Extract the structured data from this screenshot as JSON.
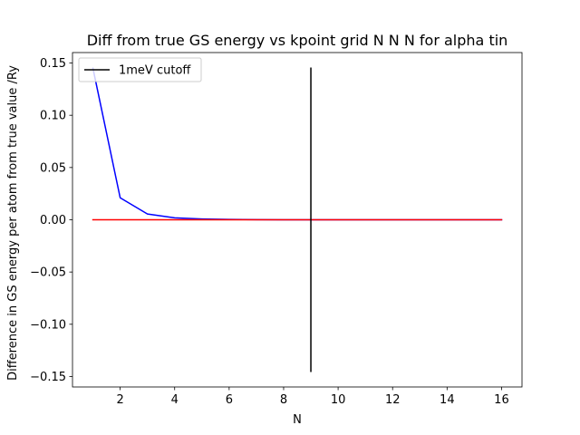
{
  "chart_data": {
    "type": "line",
    "title": "Diff from true GS energy vs kpoint grid N N N for alpha tin",
    "xlabel": "N",
    "ylabel": "Difference in GS energy per atom from true value /Ry",
    "xlim": [
      0.25,
      16.75
    ],
    "ylim": [
      -0.16,
      0.16
    ],
    "xticks": [
      2,
      4,
      6,
      8,
      10,
      12,
      14,
      16
    ],
    "yticks": [
      -0.15,
      -0.1,
      -0.05,
      0.0,
      0.05,
      0.1,
      0.15
    ],
    "xtick_labels": [
      "2",
      "4",
      "6",
      "8",
      "10",
      "12",
      "14",
      "16"
    ],
    "ytick_labels": [
      "−0.15",
      "−0.10",
      "−0.05",
      "0.00",
      "0.05",
      "0.10",
      "0.15"
    ],
    "grid": false,
    "legend": {
      "position": "upper-left",
      "entries": [
        {
          "label": "1meV cutoff",
          "color": "#000000"
        }
      ]
    },
    "series": [
      {
        "color": "#0000ff",
        "x": [
          1,
          2,
          3,
          4,
          5,
          6,
          7,
          8,
          9,
          10,
          11,
          12,
          13,
          14,
          15,
          16
        ],
        "y": [
          0.145,
          0.021,
          0.0055,
          0.0018,
          0.0008,
          0.0003,
          0.0001,
          0.0,
          0.0,
          0.0,
          0.0,
          0.0,
          0.0,
          0.0,
          0.0,
          0.0
        ]
      },
      {
        "color": "#ff0000",
        "x": [
          1,
          16
        ],
        "y": [
          0.0,
          0.0
        ]
      },
      {
        "name": "1meV cutoff",
        "color": "#000000",
        "x": [
          9,
          9
        ],
        "y": [
          -0.145,
          0.145
        ]
      }
    ]
  }
}
